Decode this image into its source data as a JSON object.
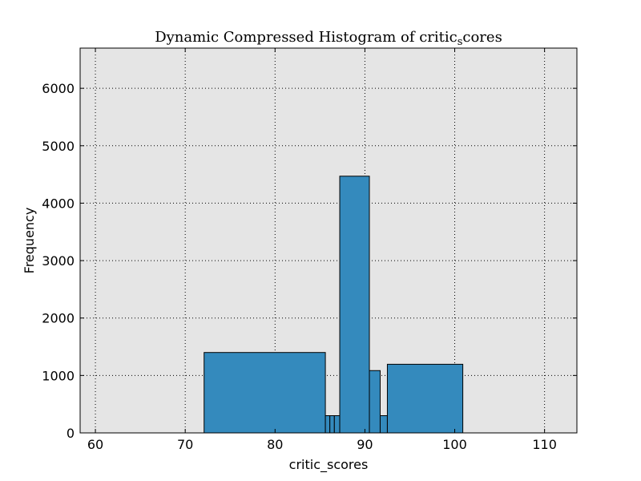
{
  "chart_data": {
    "type": "bar",
    "title_main": "Dynamic Compressed Histogram of critic",
    "title_sub": "s",
    "title_tail": "cores",
    "xlabel": "critic_scores",
    "ylabel": "Frequency",
    "xlim": [
      58.3,
      113.6
    ],
    "ylim": [
      0,
      6700
    ],
    "xticks": [
      60,
      70,
      80,
      90,
      100,
      110
    ],
    "yticks": [
      0,
      1000,
      2000,
      3000,
      4000,
      5000,
      6000
    ],
    "xtick_labels": [
      "60",
      "70",
      "80",
      "90",
      "100",
      "110"
    ],
    "ytick_labels": [
      "0",
      "1000",
      "2000",
      "3000",
      "4000",
      "5000",
      "6000"
    ],
    "grid": true,
    "bar_color": "#348abd",
    "bins": [
      {
        "left": 72.1,
        "right": 85.6,
        "value": 1400
      },
      {
        "left": 85.6,
        "right": 86.1,
        "value": 300
      },
      {
        "left": 86.1,
        "right": 86.6,
        "value": 300
      },
      {
        "left": 86.6,
        "right": 87.2,
        "value": 300
      },
      {
        "left": 87.2,
        "right": 90.5,
        "value": 4470
      },
      {
        "left": 90.5,
        "right": 91.7,
        "value": 1085
      },
      {
        "left": 91.7,
        "right": 92.5,
        "value": 300
      },
      {
        "left": 92.5,
        "right": 100.9,
        "value": 1195
      }
    ]
  }
}
